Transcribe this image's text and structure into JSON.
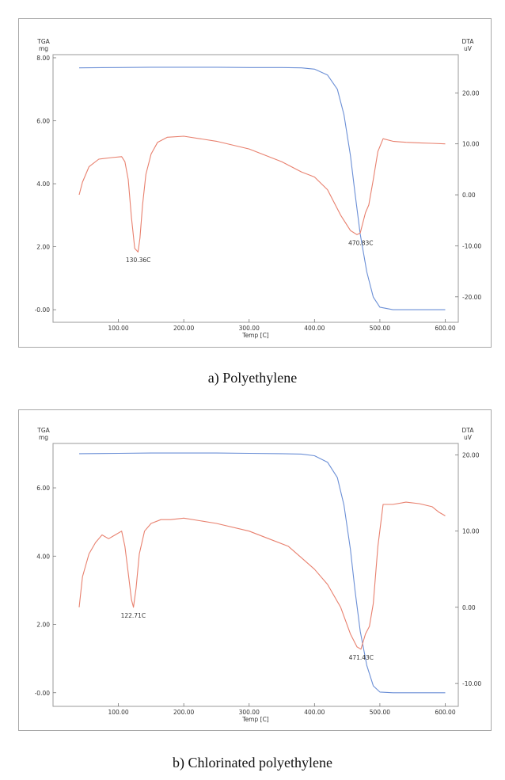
{
  "chart_data": [
    {
      "type": "line",
      "caption": "a) Polyethylene",
      "left_axis": {
        "title": "TGA",
        "unit": "mg",
        "ticks": [
          "8.00",
          "6.00",
          "4.00",
          "2.00",
          "-0.00"
        ],
        "tick_values": [
          8,
          6,
          4,
          2,
          0
        ],
        "ylim": [
          -0.4,
          8.1
        ]
      },
      "right_axis": {
        "title": "DTA",
        "unit": "uV",
        "ticks": [
          "20.00",
          "10.00",
          "0.00",
          "-10.00",
          "-20.00"
        ],
        "tick_values": [
          20,
          10,
          0,
          -10,
          -20
        ],
        "ylim": [
          -25,
          27.5
        ]
      },
      "x_axis": {
        "label": "Temp  [C]",
        "ticks": [
          "100.00",
          "200.00",
          "300.00",
          "400.00",
          "500.00",
          "600.00"
        ],
        "tick_values": [
          100,
          200,
          300,
          400,
          500,
          600
        ],
        "xlim": [
          0,
          620
        ]
      },
      "series": [
        {
          "axis": "left",
          "color": "#6b8fd6",
          "x": [
            40,
            100,
            150,
            200,
            250,
            300,
            350,
            380,
            400,
            420,
            435,
            445,
            455,
            462,
            470,
            480,
            490,
            500,
            520,
            550,
            600
          ],
          "y": [
            7.68,
            7.69,
            7.7,
            7.7,
            7.7,
            7.69,
            7.69,
            7.68,
            7.64,
            7.45,
            7.0,
            6.2,
            4.9,
            3.7,
            2.4,
            1.2,
            0.4,
            0.08,
            0.0,
            0.0,
            0.0
          ]
        },
        {
          "axis": "right",
          "color": "#e8806e",
          "x": [
            40,
            45,
            55,
            70,
            90,
            105,
            110,
            115,
            120,
            125,
            130,
            133,
            137,
            142,
            150,
            160,
            175,
            200,
            250,
            300,
            350,
            380,
            400,
            420,
            440,
            455,
            465,
            470,
            478,
            483,
            490,
            497,
            505,
            520,
            540,
            560,
            580,
            600
          ],
          "y": [
            0.0,
            2.5,
            5.5,
            7.0,
            7.3,
            7.5,
            6.5,
            3.0,
            -4.5,
            -10.5,
            -11.2,
            -8.5,
            -2.0,
            4.0,
            8.0,
            10.3,
            11.3,
            11.5,
            10.5,
            9.0,
            6.5,
            4.5,
            3.5,
            1.0,
            -4.0,
            -7.0,
            -7.8,
            -7.5,
            -3.5,
            -2.0,
            3.0,
            8.5,
            11.0,
            10.5,
            10.3,
            10.2,
            10.1,
            10.0
          ]
        }
      ],
      "annotations": [
        {
          "text": "130.36C",
          "x": 130.36,
          "y": -11.2,
          "axis": "right"
        },
        {
          "text": "470.83C",
          "x": 470.83,
          "y": -7.8,
          "axis": "right"
        }
      ]
    },
    {
      "type": "line",
      "caption": "b) Chlorinated polyethylene",
      "left_axis": {
        "title": "TGA",
        "unit": "mg",
        "ticks": [
          "6.00",
          "4.00",
          "2.00",
          "-0.00"
        ],
        "tick_values": [
          6,
          4,
          2,
          0
        ],
        "ylim": [
          -0.4,
          7.3
        ]
      },
      "right_axis": {
        "title": "DTA",
        "unit": "uV",
        "ticks": [
          "20.00",
          "10.00",
          "0.00",
          "-10.00"
        ],
        "tick_values": [
          20,
          10,
          0,
          -10
        ],
        "ylim": [
          -13,
          21.5
        ]
      },
      "x_axis": {
        "label": "Temp  [C]",
        "ticks": [
          "100.00",
          "200.00",
          "300.00",
          "400.00",
          "500.00",
          "600.00"
        ],
        "tick_values": [
          100,
          200,
          300,
          400,
          500,
          600
        ],
        "xlim": [
          0,
          620
        ]
      },
      "series": [
        {
          "axis": "left",
          "color": "#6b8fd6",
          "x": [
            40,
            100,
            150,
            200,
            250,
            300,
            350,
            380,
            400,
            420,
            435,
            445,
            455,
            462,
            470,
            480,
            490,
            500,
            520,
            550,
            600
          ],
          "y": [
            7.0,
            7.01,
            7.02,
            7.02,
            7.02,
            7.01,
            7.0,
            6.99,
            6.94,
            6.75,
            6.3,
            5.5,
            4.2,
            3.0,
            1.8,
            0.8,
            0.2,
            0.02,
            0.0,
            0.0,
            0.0
          ]
        },
        {
          "axis": "right",
          "color": "#e8806e",
          "x": [
            40,
            45,
            55,
            65,
            75,
            85,
            95,
            105,
            110,
            115,
            120,
            123,
            127,
            132,
            140,
            150,
            165,
            180,
            200,
            250,
            300,
            330,
            360,
            380,
            400,
            420,
            440,
            455,
            465,
            471,
            478,
            484,
            490,
            497,
            505,
            520,
            540,
            560,
            580,
            590,
            600
          ],
          "y": [
            0.0,
            4.0,
            7.0,
            8.5,
            9.5,
            9.0,
            9.5,
            10.0,
            8.0,
            4.5,
            1.0,
            0.0,
            2.5,
            7.0,
            10.0,
            11.0,
            11.5,
            11.5,
            11.7,
            11.0,
            10.0,
            9.0,
            8.0,
            6.5,
            5.0,
            3.0,
            0.0,
            -3.5,
            -5.2,
            -5.5,
            -3.5,
            -2.5,
            0.5,
            8.0,
            13.5,
            13.5,
            13.8,
            13.6,
            13.2,
            12.5,
            12.0
          ]
        }
      ],
      "annotations": [
        {
          "text": "122.71C",
          "x": 122.71,
          "y": 0.0,
          "axis": "right"
        },
        {
          "text": "471.43C",
          "x": 471.43,
          "y": -5.5,
          "axis": "right"
        }
      ]
    }
  ]
}
